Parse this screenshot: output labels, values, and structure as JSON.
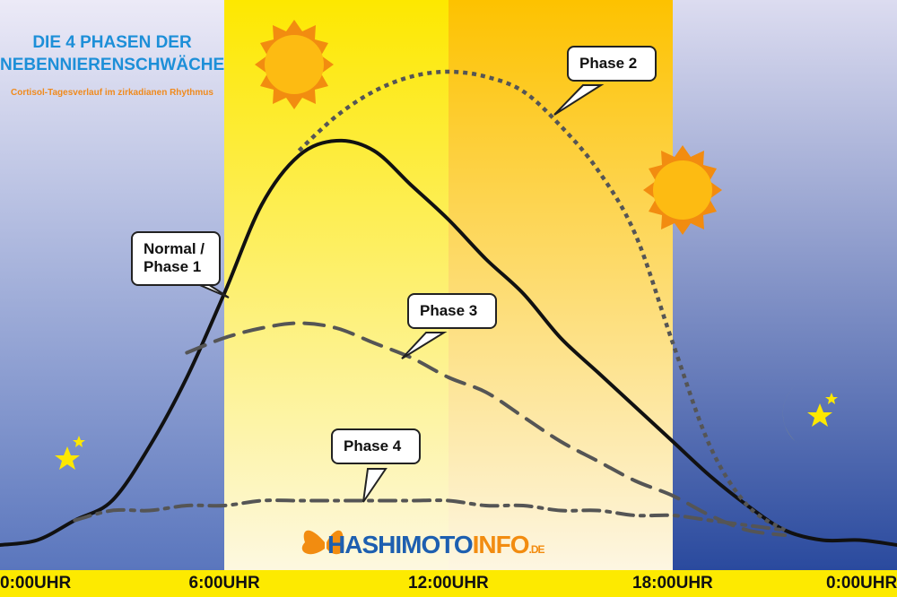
{
  "chart_data": {
    "type": "line",
    "title": "DIE 4 PHASEN DER NEBENNIERENSCHWÄCHE",
    "subtitle": "Cortisol-Tagesverlauf im zirkadianen Rhythmus",
    "brand": {
      "name": "HASHIMOTO",
      "suffix": "INFO",
      "tld": ".DE"
    },
    "x": [
      0,
      1,
      2,
      3,
      4,
      5,
      6,
      7,
      8,
      9,
      10,
      11,
      12,
      13,
      14,
      15,
      16,
      17,
      18,
      19,
      20,
      21,
      22,
      23,
      24
    ],
    "xlim": [
      0,
      24
    ],
    "xticks": [
      {
        "value": 0,
        "label": "0:00UHR"
      },
      {
        "value": 6,
        "label": "6:00UHR"
      },
      {
        "value": 12,
        "label": "12:00UHR"
      },
      {
        "value": 18,
        "label": "18:00UHR"
      },
      {
        "value": 24,
        "label": "0:00UHR"
      }
    ],
    "ylim": [
      0,
      100
    ],
    "series": [
      {
        "name": "Normal / Phase 1",
        "color": "#111111",
        "style": "solid",
        "values": [
          4,
          5,
          9,
          13,
          24,
          38,
          55,
          73,
          83,
          86,
          84,
          77,
          70,
          62,
          55,
          46,
          39,
          32,
          25,
          18,
          12,
          7,
          5,
          5,
          4
        ]
      },
      {
        "name": "Phase 2",
        "color": "#555555",
        "style": "dotted",
        "values": [
          null,
          null,
          null,
          null,
          null,
          null,
          null,
          null,
          84,
          91,
          96,
          99,
          100,
          99,
          96,
          89,
          80,
          67,
          45,
          24,
          12,
          7,
          null,
          null,
          null
        ]
      },
      {
        "name": "Phase 3",
        "color": "#555555",
        "style": "dashed",
        "values": [
          null,
          null,
          null,
          null,
          null,
          43,
          46,
          48,
          49,
          48,
          45,
          42,
          38,
          35,
          30,
          25,
          21,
          17,
          14,
          10,
          7,
          6,
          null,
          null,
          null
        ]
      },
      {
        "name": "Phase 4",
        "color": "#555555",
        "style": "dashdot",
        "values": [
          null,
          null,
          9,
          11,
          11,
          12,
          12,
          13,
          13,
          13,
          13,
          13,
          13,
          12,
          12,
          11,
          11,
          10,
          10,
          9,
          8,
          7,
          null,
          null,
          null
        ]
      }
    ]
  }
}
